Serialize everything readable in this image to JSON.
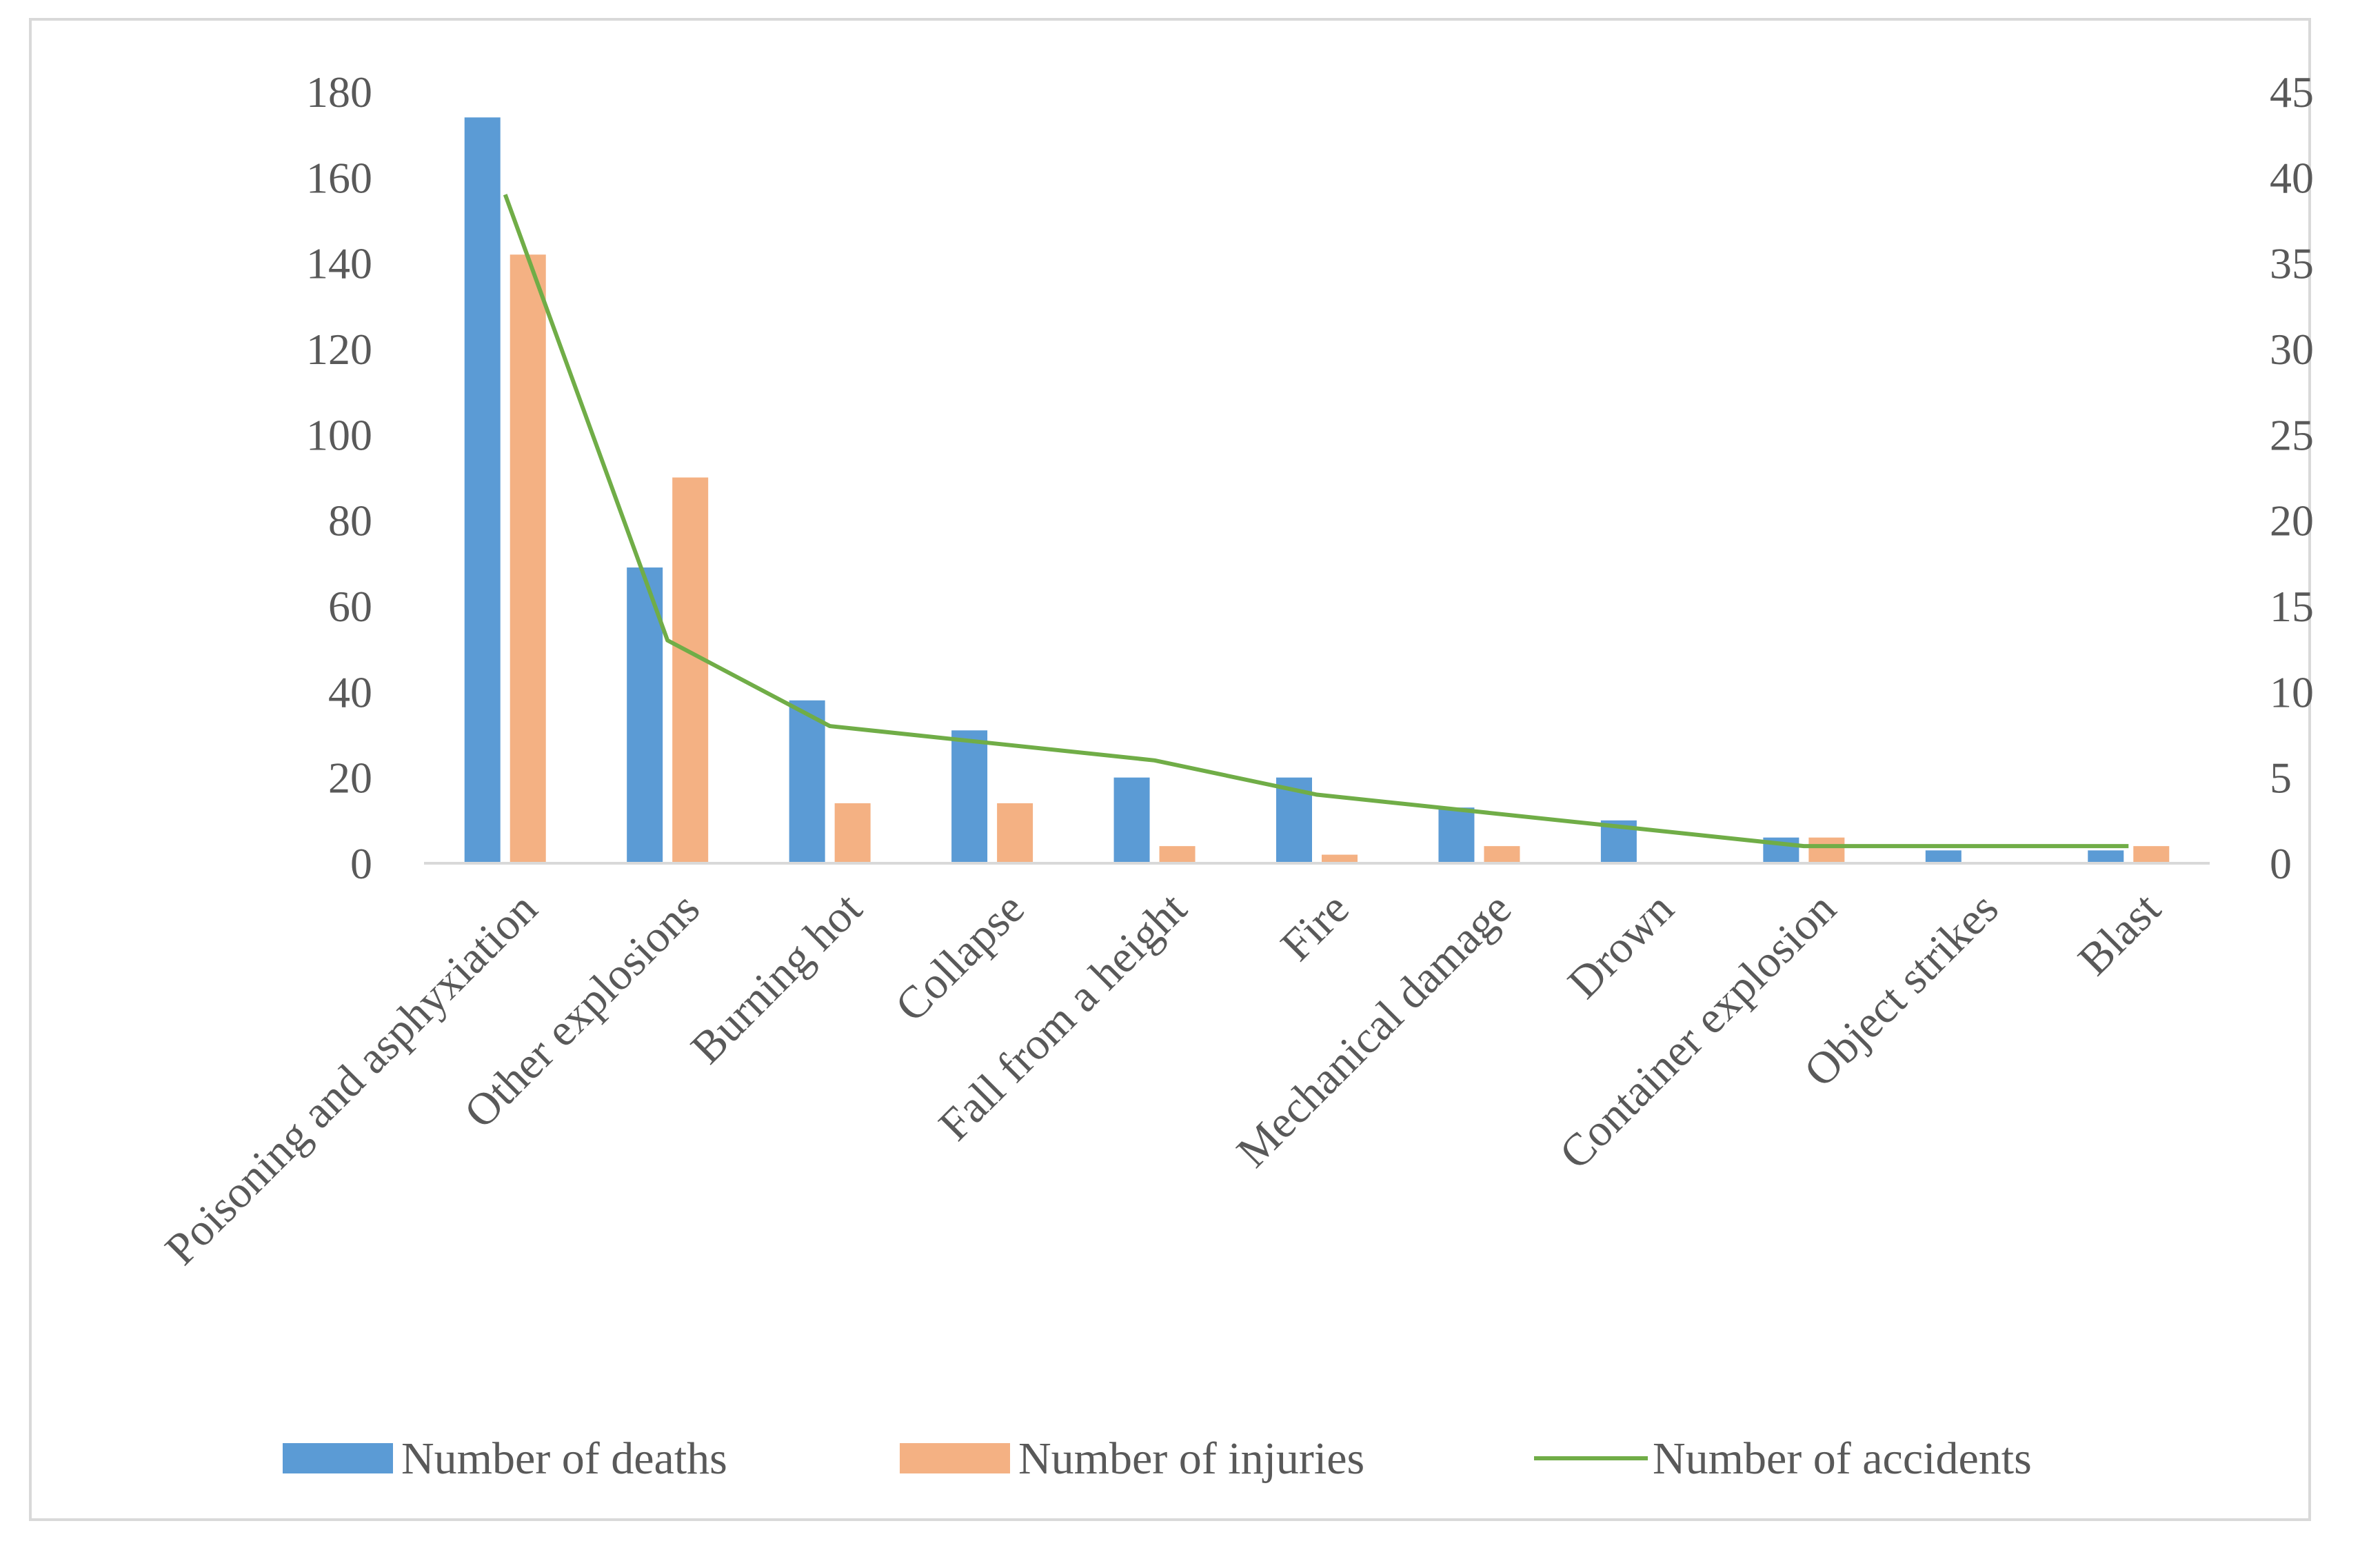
{
  "chart_data": {
    "type": "bar",
    "title": "",
    "xlabel": "",
    "ylabel": "",
    "y2label": "",
    "categories": [
      "Poisoning and asphyxiation",
      "Other explosions",
      "Burning hot",
      "Collapse",
      "Fall from a height",
      "Fire",
      "Mechanical damage",
      "Drown",
      "Container explosion",
      "Object strikes",
      "Blast"
    ],
    "ylim": [
      0,
      180
    ],
    "y_ticks": [
      0,
      20,
      40,
      60,
      80,
      100,
      120,
      140,
      160,
      180
    ],
    "y2lim": [
      0,
      45
    ],
    "y2_ticks": [
      0,
      5,
      10,
      15,
      20,
      25,
      30,
      35,
      40,
      45
    ],
    "grid": false,
    "legend_position": "bottom",
    "series": [
      {
        "name": "Number of deaths",
        "kind": "bar",
        "axis": "left",
        "color": "#5b9bd5",
        "values": [
          174,
          69,
          38,
          31,
          20,
          20,
          13,
          10,
          6,
          3,
          3
        ]
      },
      {
        "name": "Number of injuries",
        "kind": "bar",
        "axis": "left",
        "color": "#f4b183",
        "values": [
          142,
          90,
          14,
          14,
          4,
          2,
          4,
          0,
          6,
          0,
          4
        ]
      },
      {
        "name": "Number of accidents",
        "kind": "line",
        "axis": "right",
        "color": "#70ad47",
        "values": [
          39,
          13,
          8,
          7,
          6,
          4,
          3,
          2,
          1,
          1,
          1
        ]
      }
    ]
  }
}
